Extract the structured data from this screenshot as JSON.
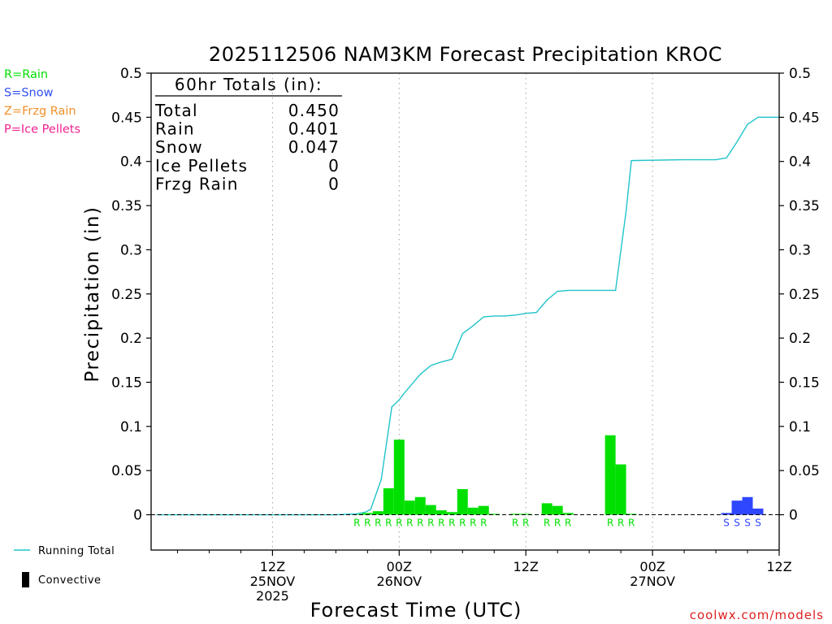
{
  "chart_data": {
    "type": "bar",
    "title": "2025112506 NAM3KM Forecast Precipitation KROC",
    "ylabel": "Precipitation  (in)",
    "xlabel": "Forecast Time (UTC)",
    "ylim": [
      -0.04,
      0.5
    ],
    "xlim": [
      -5.5,
      54
    ],
    "yticks": [
      0,
      0.05,
      0.1,
      0.15,
      0.2,
      0.25,
      0.3,
      0.35,
      0.4,
      0.45,
      0.5
    ],
    "ytick_labels": [
      "0",
      "0.05",
      "0.1",
      "0.15",
      "0.2",
      "0.25",
      "0.3",
      "0.35",
      "0.4",
      "0.45",
      "0.5"
    ],
    "xticks": [
      {
        "x": 6,
        "lines": [
          "12Z",
          "25NOV",
          "2025"
        ]
      },
      {
        "x": 18,
        "lines": [
          "00Z",
          "26NOV"
        ]
      },
      {
        "x": 30,
        "lines": [
          "12Z"
        ]
      },
      {
        "x": 42,
        "lines": [
          "00Z",
          "27NOV"
        ]
      },
      {
        "x": 54,
        "lines": [
          "12Z"
        ]
      }
    ],
    "bars": [
      {
        "h": 14,
        "v": 0.001,
        "type": "R"
      },
      {
        "h": 15,
        "v": 0.002,
        "type": "R"
      },
      {
        "h": 16,
        "v": 0.004,
        "type": "R"
      },
      {
        "h": 17,
        "v": 0.03,
        "type": "R"
      },
      {
        "h": 18,
        "v": 0.085,
        "type": "R"
      },
      {
        "h": 19,
        "v": 0.016,
        "type": "R"
      },
      {
        "h": 20,
        "v": 0.02,
        "type": "R"
      },
      {
        "h": 21,
        "v": 0.011,
        "type": "R"
      },
      {
        "h": 22,
        "v": 0.005,
        "type": "R"
      },
      {
        "h": 23,
        "v": 0.003,
        "type": "R"
      },
      {
        "h": 24,
        "v": 0.029,
        "type": "R"
      },
      {
        "h": 25,
        "v": 0.008,
        "type": "R"
      },
      {
        "h": 26,
        "v": 0.01,
        "type": "R"
      },
      {
        "h": 27,
        "v": 0.001,
        "type": "R"
      },
      {
        "h": 29,
        "v": 0.001,
        "type": "R"
      },
      {
        "h": 30,
        "v": 0.001,
        "type": "R"
      },
      {
        "h": 32,
        "v": 0.013,
        "type": "R"
      },
      {
        "h": 33,
        "v": 0.01,
        "type": "R"
      },
      {
        "h": 34,
        "v": 0.002,
        "type": "R"
      },
      {
        "h": 38,
        "v": 0.09,
        "type": "R"
      },
      {
        "h": 39,
        "v": 0.057,
        "type": "R"
      },
      {
        "h": 40,
        "v": 0.001,
        "type": "R"
      },
      {
        "h": 49,
        "v": 0.002,
        "type": "S"
      },
      {
        "h": 50,
        "v": 0.016,
        "type": "S"
      },
      {
        "h": 51,
        "v": 0.02,
        "type": "S"
      },
      {
        "h": 52,
        "v": 0.007,
        "type": "S"
      }
    ],
    "precip_labels": [
      {
        "h": 14,
        "t": "R"
      },
      {
        "h": 15,
        "t": "R"
      },
      {
        "h": 16,
        "t": "R"
      },
      {
        "h": 17,
        "t": "R"
      },
      {
        "h": 18,
        "t": "R"
      },
      {
        "h": 19,
        "t": "R"
      },
      {
        "h": 20,
        "t": "R"
      },
      {
        "h": 21,
        "t": "R"
      },
      {
        "h": 22,
        "t": "R"
      },
      {
        "h": 23,
        "t": "R"
      },
      {
        "h": 24,
        "t": "R"
      },
      {
        "h": 25,
        "t": "R"
      },
      {
        "h": 26,
        "t": "R"
      },
      {
        "h": 29,
        "t": "R"
      },
      {
        "h": 30,
        "t": "R"
      },
      {
        "h": 32,
        "t": "R"
      },
      {
        "h": 33,
        "t": "R"
      },
      {
        "h": 34,
        "t": "R"
      },
      {
        "h": 38,
        "t": "R"
      },
      {
        "h": 39,
        "t": "R"
      },
      {
        "h": 40,
        "t": "R"
      },
      {
        "h": 49,
        "t": "S"
      },
      {
        "h": 50,
        "t": "S"
      },
      {
        "h": 51,
        "t": "S"
      },
      {
        "h": 52,
        "t": "S"
      }
    ],
    "running_total": {
      "name": "Running Total",
      "x": [
        -5,
        12,
        13,
        14,
        14.8,
        15.3,
        16.3,
        17.3,
        18,
        18.5,
        20,
        21,
        22,
        23,
        24,
        25,
        26,
        27,
        28,
        29,
        30,
        31,
        32,
        33,
        34,
        38,
        38.5,
        39.5,
        40,
        45,
        47,
        47.5,
        48,
        49,
        50,
        51,
        52,
        54
      ],
      "y": [
        0,
        0,
        0.0005,
        0.001,
        0.003,
        0.006,
        0.04,
        0.122,
        0.13,
        0.138,
        0.159,
        0.169,
        0.173,
        0.176,
        0.205,
        0.214,
        0.224,
        0.225,
        0.225,
        0.226,
        0.228,
        0.229,
        0.243,
        0.253,
        0.254,
        0.254,
        0.254,
        0.344,
        0.401,
        0.402,
        0.402,
        0.402,
        0.402,
        0.404,
        0.422,
        0.442,
        0.45,
        0.45
      ]
    },
    "totals_table": {
      "heading": "60hr Totals (in):",
      "rows": [
        {
          "label": "Total",
          "value": "0.450"
        },
        {
          "label": "Rain",
          "value": "0.401"
        },
        {
          "label": "Snow",
          "value": "0.047"
        },
        {
          "label": "Ice Pellets",
          "value": "0"
        },
        {
          "label": "Frzg Rain",
          "value": "0"
        }
      ]
    },
    "type_legend": [
      {
        "text": "R=Rain",
        "color": "#00e000"
      },
      {
        "text": "S=Snow",
        "color": "#3050f0"
      },
      {
        "text": "Z=Frzg Rain",
        "color": "#f0902a"
      },
      {
        "text": "P=Ice Pellets",
        "color": "#f02090"
      }
    ],
    "bottom_legend": [
      {
        "text": "Running Total",
        "kind": "line"
      },
      {
        "text": "Convective",
        "kind": "block"
      }
    ],
    "credit": "coolwx.com/models",
    "colors": {
      "rain": "#00e000",
      "snow": "#2f46ff",
      "total_line": "#22c3cb",
      "axis": "#000000",
      "grid": "#a0a0a0",
      "credit": "#e02020"
    }
  }
}
